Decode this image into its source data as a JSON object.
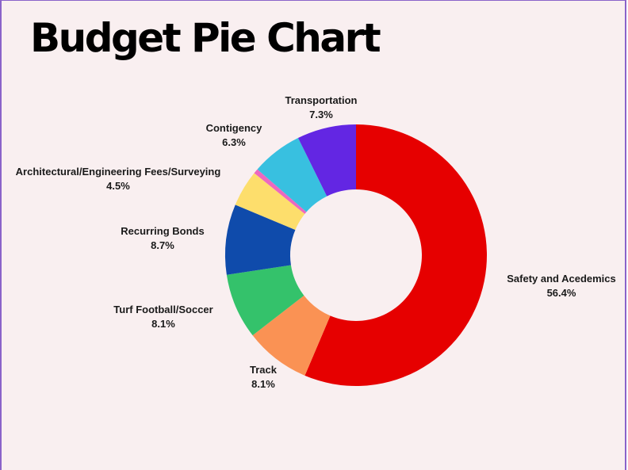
{
  "page": {
    "title": "Budget Pie Chart"
  },
  "chart_data": {
    "type": "pie",
    "variant": "donut",
    "title": "Budget Pie Chart",
    "slices": [
      {
        "label": "Safety and Acedemics",
        "value": 56.4,
        "value_label": "56.4%",
        "color": "#e60000"
      },
      {
        "label": "Track",
        "value": 8.1,
        "value_label": "8.1%",
        "color": "#fa9254"
      },
      {
        "label": "Turf Football/Soccer",
        "value": 8.1,
        "value_label": "8.1%",
        "color": "#34c26b"
      },
      {
        "label": "Recurring Bonds",
        "value": 8.7,
        "value_label": "8.7%",
        "color": "#0f4bab"
      },
      {
        "label": "Architectural/Engineering Fees/Surveying",
        "value": 4.5,
        "value_label": "4.5%",
        "color": "#fdde6c"
      },
      {
        "label": "",
        "value": 0.6,
        "value_label": "",
        "color": "#ec68c0"
      },
      {
        "label": "Contigency",
        "value": 6.3,
        "value_label": "6.3%",
        "color": "#38c0e0"
      },
      {
        "label": "Transportation",
        "value": 7.3,
        "value_label": "7.3%",
        "color": "#6326e3"
      }
    ],
    "start": "12 o'clock",
    "direction": "clockwise",
    "legend": "none",
    "labels": "outside"
  }
}
